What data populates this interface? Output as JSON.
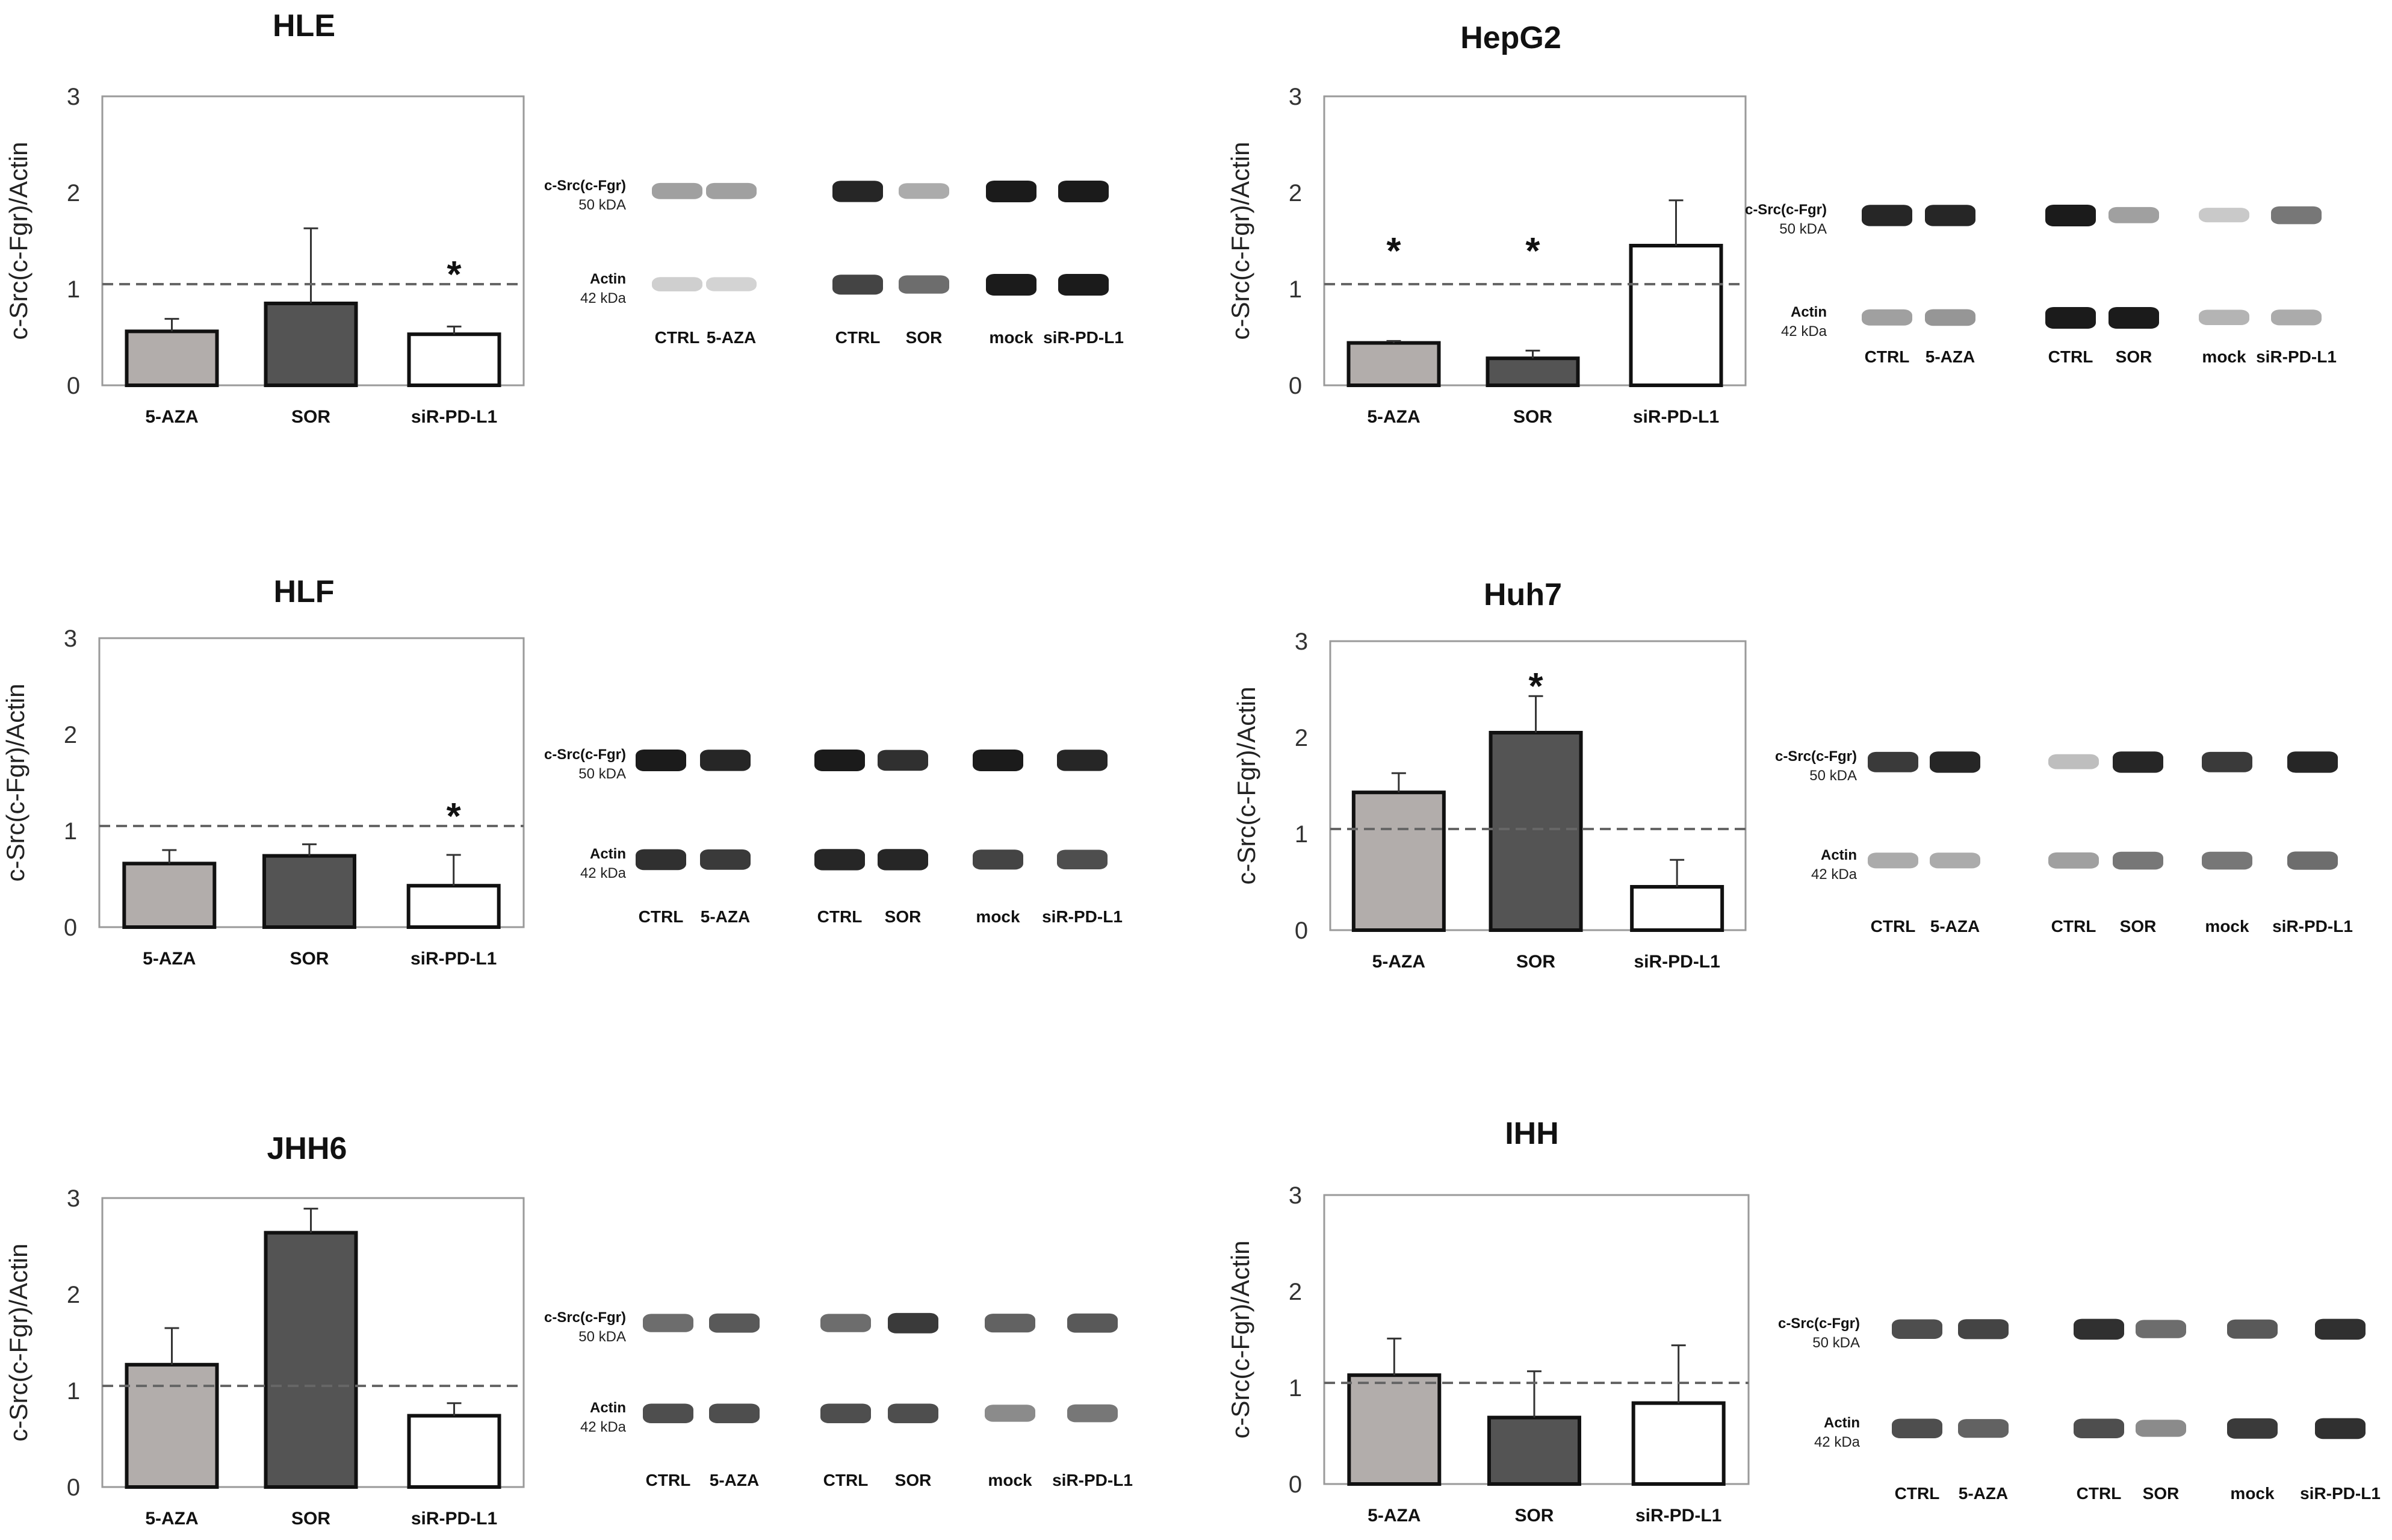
{
  "figure": {
    "ylabel": "c-Src(c-Fgr)/Actin",
    "reference_line_value": 1.05
  },
  "colors": {
    "5-AZA": "#b2adab",
    "SOR": "#545454",
    "siR-PD-L1": "#ffffff",
    "bar_edge": "#111111",
    "reference_line": "#666666"
  },
  "chart_data": [
    {
      "type": "bar",
      "title": "HLE",
      "ylabel": "c-Src(c-Fgr)/Actin",
      "ylim": [
        0,
        3
      ],
      "yticks": [
        "0",
        "1",
        "2",
        "3"
      ],
      "categories": [
        "5-AZA",
        "SOR",
        "siR-PD-L1"
      ],
      "values": [
        0.56,
        0.85,
        0.53
      ],
      "errors": [
        0.13,
        0.78,
        0.08
      ],
      "significant": [
        "",
        "",
        "*"
      ],
      "reference_line": 1.05,
      "grid": false
    },
    {
      "type": "bar",
      "title": "HepG2",
      "ylabel": "c-Src(c-Fgr)/Actin",
      "ylim": [
        0,
        3
      ],
      "yticks": [
        "0",
        "1",
        "2",
        "3"
      ],
      "categories": [
        "5-AZA",
        "SOR",
        "siR-PD-L1"
      ],
      "values": [
        0.44,
        0.28,
        1.45
      ],
      "errors": [
        0.02,
        0.08,
        0.47
      ],
      "significant": [
        "*",
        "*",
        ""
      ],
      "reference_line": 1.05,
      "grid": false
    },
    {
      "type": "bar",
      "title": "HLF",
      "ylabel": "c-Src(c-Fgr)/Actin",
      "ylim": [
        0,
        3
      ],
      "yticks": [
        "0",
        "1",
        "2",
        "3"
      ],
      "categories": [
        "5-AZA",
        "SOR",
        "siR-PD-L1"
      ],
      "values": [
        0.66,
        0.74,
        0.43
      ],
      "errors": [
        0.14,
        0.12,
        0.32
      ],
      "significant": [
        "",
        "",
        "*"
      ],
      "reference_line": 1.05,
      "grid": false
    },
    {
      "type": "bar",
      "title": "Huh7",
      "ylabel": "c-Src(c-Fgr)/Actin",
      "ylim": [
        0,
        3
      ],
      "yticks": [
        "0",
        "1",
        "2",
        "3"
      ],
      "categories": [
        "5-AZA",
        "SOR",
        "siR-PD-L1"
      ],
      "values": [
        1.43,
        2.05,
        0.45
      ],
      "errors": [
        0.2,
        0.38,
        0.28
      ],
      "significant": [
        "",
        "*",
        ""
      ],
      "reference_line": 1.05,
      "grid": false
    },
    {
      "type": "bar",
      "title": "JHH6",
      "ylabel": "c-Src(c-Fgr)/Actin",
      "ylim": [
        0,
        3
      ],
      "yticks": [
        "0",
        "1",
        "2",
        "3"
      ],
      "categories": [
        "5-AZA",
        "SOR",
        "siR-PD-L1"
      ],
      "values": [
        1.27,
        2.64,
        0.74
      ],
      "errors": [
        0.38,
        0.25,
        0.13
      ],
      "significant": [
        "",
        "",
        ""
      ],
      "reference_line": 1.05,
      "grid": false
    },
    {
      "type": "bar",
      "title": "IHH",
      "ylabel": "c-Src(c-Fgr)/Actin",
      "ylim": [
        0,
        3
      ],
      "yticks": [
        "0",
        "1",
        "2",
        "3"
      ],
      "categories": [
        "5-AZA",
        "SOR",
        "siR-PD-L1"
      ],
      "values": [
        1.13,
        0.69,
        0.84
      ],
      "errors": [
        0.38,
        0.48,
        0.6
      ],
      "significant": [
        "",
        "",
        ""
      ],
      "reference_line": 1.05,
      "grid": false
    }
  ],
  "blots": [
    {
      "target_label": "c-Src(c-Fgr)",
      "target_kda": "50 kDA",
      "control_label": "Actin",
      "control_kda": "42 kDa",
      "lanes": [
        "CTRL",
        "5-AZA",
        "CTRL",
        "SOR",
        "mock",
        "siR-PD-L1"
      ],
      "target_intensity": [
        0.35,
        0.35,
        0.95,
        0.3,
        1.0,
        1.0
      ],
      "control_intensity": [
        0.12,
        0.1,
        0.8,
        0.6,
        1.0,
        1.0
      ]
    },
    {
      "target_label": "c-Src(c-Fgr)",
      "target_kda": "50 kDA",
      "control_label": "Actin",
      "control_kda": "42 kDa",
      "lanes": [
        "CTRL",
        "5-AZA",
        "CTRL",
        "SOR",
        "mock",
        "siR-PD-L1"
      ],
      "target_intensity": [
        0.95,
        0.95,
        1.0,
        0.35,
        0.15,
        0.55
      ],
      "control_intensity": [
        0.35,
        0.4,
        1.0,
        1.0,
        0.25,
        0.3
      ]
    },
    {
      "target_label": "c-Src(c-Fgr)",
      "target_kda": "50 kDA",
      "control_label": "Actin",
      "control_kda": "42 kDa",
      "lanes": [
        "CTRL",
        "5-AZA",
        "CTRL",
        "SOR",
        "mock",
        "siR-PD-L1"
      ],
      "target_intensity": [
        1.0,
        0.95,
        1.0,
        0.9,
        1.0,
        0.95
      ],
      "control_intensity": [
        0.9,
        0.85,
        0.95,
        0.95,
        0.8,
        0.75
      ]
    },
    {
      "target_label": "c-Src(c-Fgr)",
      "target_kda": "50 kDA",
      "control_label": "Actin",
      "control_kda": "42 kDa",
      "lanes": [
        "CTRL",
        "5-AZA",
        "CTRL",
        "SOR",
        "mock",
        "siR-PD-L1"
      ],
      "target_intensity": [
        0.85,
        0.95,
        0.2,
        0.95,
        0.85,
        0.95
      ],
      "control_intensity": [
        0.3,
        0.3,
        0.35,
        0.55,
        0.55,
        0.6
      ]
    },
    {
      "target_label": "c-Src(c-Fgr)",
      "target_kda": "50 kDA",
      "control_label": "Actin",
      "control_kda": "42 kDa",
      "lanes": [
        "CTRL",
        "5-AZA",
        "CTRL",
        "SOR",
        "mock",
        "siR-PD-L1"
      ],
      "target_intensity": [
        0.6,
        0.7,
        0.6,
        0.85,
        0.65,
        0.7
      ],
      "control_intensity": [
        0.75,
        0.75,
        0.75,
        0.75,
        0.45,
        0.55
      ]
    },
    {
      "target_label": "c-Src(c-Fgr)",
      "target_kda": "50 kDA",
      "control_label": "Actin",
      "control_kda": "42 kDa",
      "lanes": [
        "CTRL",
        "5-AZA",
        "CTRL",
        "SOR",
        "mock",
        "siR-PD-L1"
      ],
      "target_intensity": [
        0.75,
        0.8,
        0.9,
        0.6,
        0.7,
        0.9
      ],
      "control_intensity": [
        0.75,
        0.65,
        0.75,
        0.45,
        0.85,
        0.9
      ]
    }
  ]
}
